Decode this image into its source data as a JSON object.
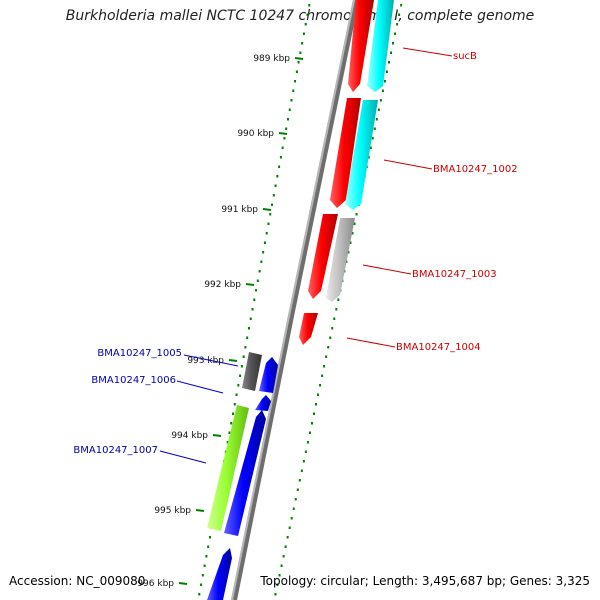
{
  "title": "Burkholderia mallei NCTC 10247 chromosome I, complete genome",
  "footer": {
    "accession": "Accession: NC_009080",
    "summary": "Topology: circular; Length: 3,495,687 bp; Genes: 3,325"
  },
  "ticks": [
    {
      "label": "989 kbp"
    },
    {
      "label": "990 kbp"
    },
    {
      "label": "991 kbp"
    },
    {
      "label": "992 kbp"
    },
    {
      "label": "993 kbp"
    },
    {
      "label": "994 kbp"
    },
    {
      "label": "995 kbp"
    },
    {
      "label": "996 kbp"
    }
  ],
  "genes": [
    {
      "name": "sucB",
      "strand": "forward",
      "color": "#ff0000"
    },
    {
      "name": "BMA10247_1002",
      "strand": "forward",
      "color": "#ff0000"
    },
    {
      "name": "BMA10247_1003",
      "strand": "forward",
      "color": "#ff0000"
    },
    {
      "name": "BMA10247_1004",
      "strand": "forward",
      "color": "#ff0000"
    },
    {
      "name": "BMA10247_1005",
      "strand": "reverse",
      "color": "#0000ff"
    },
    {
      "name": "BMA10247_1006",
      "strand": "reverse",
      "color": "#0000ff"
    },
    {
      "name": "BMA10247_1007",
      "strand": "reverse",
      "color": "#0000ff"
    }
  ],
  "colors": {
    "red": "#ff0000",
    "cyan": "#00ffff",
    "gray": "#c0c0c0",
    "darkgray": "#555555",
    "blue": "#0000ff",
    "lime": "#99ff33",
    "backbone": "#808080",
    "tick": "#008000"
  }
}
